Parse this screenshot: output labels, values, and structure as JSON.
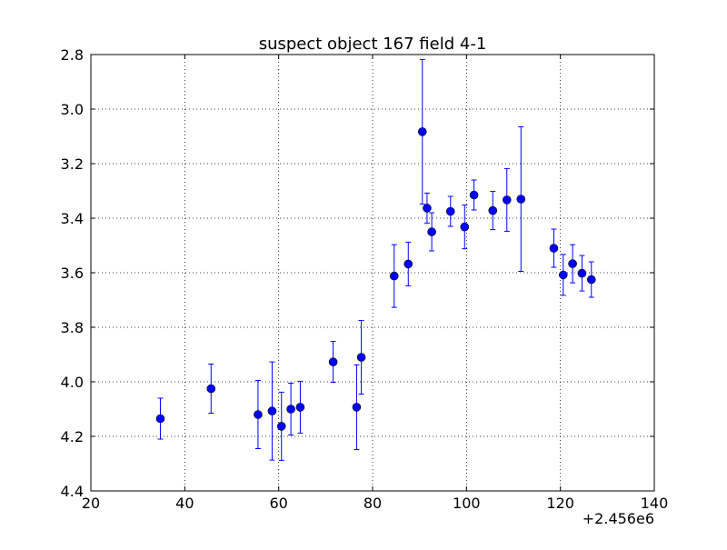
{
  "chart_data": {
    "type": "scatter",
    "title": "suspect object 167 field 4-1",
    "xlabel": "",
    "ylabel": "",
    "x_offset_label": "+2.456e6",
    "xlim": [
      20,
      140
    ],
    "ylim": [
      2.8,
      4.4
    ],
    "y_inverted": true,
    "grid": true,
    "x_ticks": [
      "20",
      "40",
      "60",
      "80",
      "100",
      "120",
      "140"
    ],
    "y_ticks": [
      "2.8",
      "3.0",
      "3.2",
      "3.4",
      "3.6",
      "3.8",
      "4.0",
      "4.2",
      "4.4"
    ],
    "marker_color": "#0000ff",
    "series": [
      {
        "points": [
          {
            "x": 34.8,
            "y": 4.135,
            "err": 0.075
          },
          {
            "x": 45.6,
            "y": 4.025,
            "err": 0.09
          },
          {
            "x": 55.6,
            "y": 4.12,
            "err": 0.125
          },
          {
            "x": 58.6,
            "y": 4.107,
            "err": 0.18
          },
          {
            "x": 60.6,
            "y": 4.163,
            "err": 0.125
          },
          {
            "x": 62.6,
            "y": 4.1,
            "err": 0.095
          },
          {
            "x": 64.6,
            "y": 4.093,
            "err": 0.095
          },
          {
            "x": 71.6,
            "y": 3.927,
            "err": 0.075
          },
          {
            "x": 76.6,
            "y": 4.093,
            "err": 0.155
          },
          {
            "x": 77.6,
            "y": 3.91,
            "err": 0.135
          },
          {
            "x": 84.6,
            "y": 3.612,
            "err": 0.115
          },
          {
            "x": 87.6,
            "y": 3.568,
            "err": 0.08
          },
          {
            "x": 90.6,
            "y": 3.083,
            "err": 0.265
          },
          {
            "x": 91.6,
            "y": 3.363,
            "err": 0.055
          },
          {
            "x": 92.6,
            "y": 3.45,
            "err": 0.07
          },
          {
            "x": 96.6,
            "y": 3.375,
            "err": 0.055
          },
          {
            "x": 99.6,
            "y": 3.432,
            "err": 0.08
          },
          {
            "x": 101.6,
            "y": 3.315,
            "err": 0.055
          },
          {
            "x": 105.6,
            "y": 3.372,
            "err": 0.07
          },
          {
            "x": 108.6,
            "y": 3.333,
            "err": 0.115
          },
          {
            "x": 111.6,
            "y": 3.33,
            "err": 0.265
          },
          {
            "x": 118.6,
            "y": 3.51,
            "err": 0.07
          },
          {
            "x": 120.6,
            "y": 3.608,
            "err": 0.075
          },
          {
            "x": 122.6,
            "y": 3.567,
            "err": 0.07
          },
          {
            "x": 124.6,
            "y": 3.602,
            "err": 0.065
          },
          {
            "x": 126.6,
            "y": 3.625,
            "err": 0.065
          }
        ]
      }
    ]
  }
}
